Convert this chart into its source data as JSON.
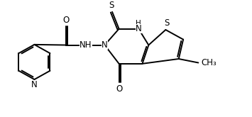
{
  "bg_color": "#ffffff",
  "line_color": "#000000",
  "line_width": 1.4,
  "font_size": 8.5,
  "xlim": [
    0,
    10
  ],
  "ylim": [
    0,
    4.5
  ],
  "figsize": [
    3.55,
    1.65
  ],
  "dpi": 100
}
